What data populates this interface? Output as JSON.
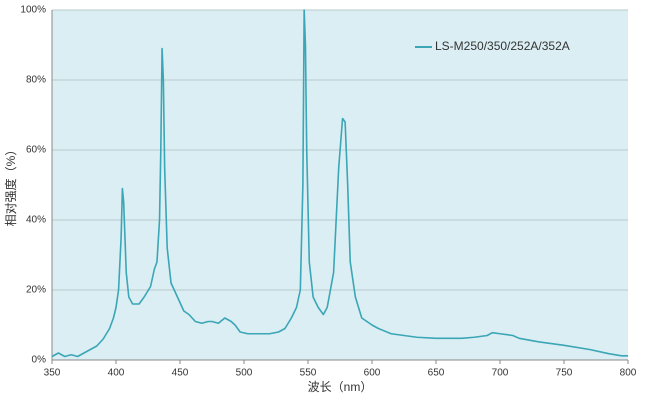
{
  "chart_data": {
    "type": "line",
    "xlabel": "波长（nm）",
    "ylabel": "相对强度（%）",
    "x": [
      350,
      355,
      360,
      365,
      370,
      375,
      380,
      385,
      390,
      395,
      398,
      400,
      402,
      404,
      405,
      406,
      408,
      410,
      413,
      418,
      422,
      427,
      430,
      432,
      434,
      435,
      436,
      437,
      438,
      440,
      443,
      448,
      453,
      457,
      462,
      467,
      472,
      475,
      480,
      485,
      490,
      493,
      497,
      503,
      510,
      520,
      527,
      532,
      537,
      541,
      544,
      546,
      547,
      548,
      549,
      551,
      554,
      558,
      562,
      565,
      570,
      574,
      577,
      579,
      581,
      583,
      587,
      592,
      600,
      605,
      615,
      625,
      635,
      650,
      670,
      680,
      690,
      694,
      700,
      710,
      715,
      730,
      750,
      770,
      785,
      795,
      800
    ],
    "series": [
      {
        "name": "LS-M250/350/252A/352A",
        "color": "#3aa6b6",
        "values": [
          1,
          2,
          1,
          1.5,
          1,
          2,
          3,
          4,
          6,
          9,
          12,
          15,
          20,
          35,
          49,
          45,
          25,
          18,
          16,
          16,
          18,
          21,
          26,
          28,
          40,
          60,
          89,
          80,
          55,
          32,
          22,
          18,
          14,
          13,
          11,
          10.5,
          11,
          11,
          10.5,
          12,
          11,
          10,
          8,
          7.5,
          7.5,
          7.5,
          8,
          9,
          12,
          15,
          20,
          50,
          100,
          90,
          60,
          28,
          18,
          15,
          13,
          15,
          25,
          55,
          69,
          68,
          50,
          28,
          18,
          12,
          10,
          9,
          7.5,
          7,
          6.5,
          6.2,
          6.2,
          6.5,
          7,
          7.8,
          7.5,
          7,
          6.2,
          5.2,
          4.2,
          3,
          1.8,
          1.2,
          1.2
        ]
      }
    ],
    "xlim": [
      350,
      800
    ],
    "xticks": [
      350,
      400,
      450,
      500,
      550,
      600,
      650,
      700,
      750,
      800
    ],
    "ylim": [
      0,
      100
    ],
    "yticks": [
      {
        "value": 0,
        "label": "0%"
      },
      {
        "value": 20,
        "label": "20%"
      },
      {
        "value": 40,
        "label": "40%"
      },
      {
        "value": 60,
        "label": "60%"
      },
      {
        "value": 80,
        "label": "80%"
      },
      {
        "value": 100,
        "label": "100%"
      }
    ],
    "grid": true,
    "legend": "upper right",
    "background": "#dbeef3"
  }
}
